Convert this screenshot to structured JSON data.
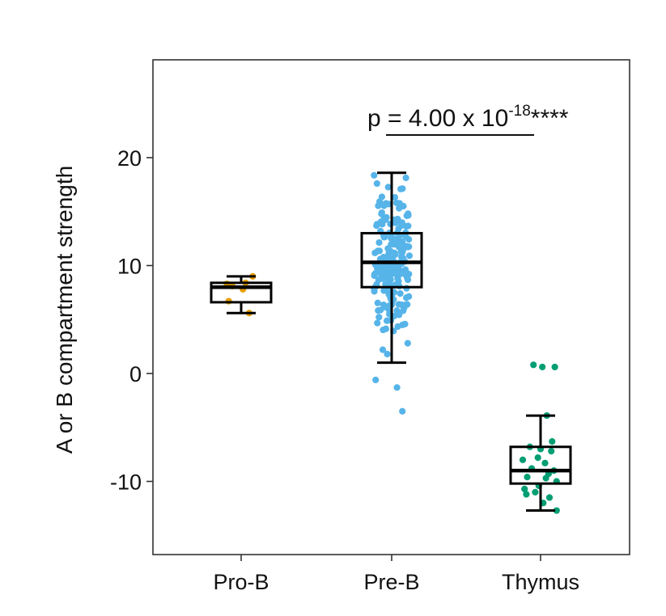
{
  "chart_data": {
    "type": "box-jitter",
    "title": "",
    "xlabel": "",
    "ylabel": "A or B compartment strength",
    "ylim": [
      -17,
      29
    ],
    "yticks": [
      -10,
      0,
      10,
      20
    ],
    "ytick_labels": [
      "-10",
      "0",
      "10",
      "20"
    ],
    "grid": false,
    "categories": [
      "Pro-B",
      "Pre-B",
      "Thymus"
    ],
    "colors": {
      "Pro-B": "#E69F00",
      "Pre-B": "#56B4E9",
      "Thymus": "#009E73"
    },
    "boxes": [
      {
        "name": "Pro-B",
        "whisker_low": 5.6,
        "q1": 6.6,
        "median": 8.0,
        "q3": 8.4,
        "whisker_high": 9.0
      },
      {
        "name": "Pre-B",
        "whisker_low": 1.0,
        "q1": 8.0,
        "median": 10.3,
        "q3": 13.0,
        "whisker_high": 18.6
      },
      {
        "name": "Thymus",
        "whisker_low": -12.7,
        "q1": -10.2,
        "median": -9.0,
        "q3": -6.8,
        "whisker_high": -3.9
      }
    ],
    "points": {
      "Pro-B": [
        [
          -0.16,
          8.3
        ],
        [
          -0.1,
          8.1
        ],
        [
          0.05,
          8.4
        ],
        [
          0.13,
          9.0
        ],
        [
          -0.14,
          6.7
        ],
        [
          0.09,
          5.6
        ],
        [
          0.02,
          7.8
        ]
      ],
      "Pre-B": [
        [
          -0.18,
          -0.6
        ],
        [
          -0.1,
          2.2
        ],
        [
          0.06,
          -1.3
        ],
        [
          0.18,
          2.8
        ],
        [
          0.12,
          -3.5
        ],
        [
          -0.05,
          1.8
        ]
      ],
      "Thymus": [
        [
          -0.08,
          0.8
        ],
        [
          0.02,
          0.6
        ],
        [
          0.16,
          0.6
        ],
        [
          0.07,
          -3.9
        ],
        [
          0.18,
          -12.7
        ],
        [
          -0.18,
          -10.7
        ],
        [
          0.1,
          -11.5
        ],
        [
          -0.12,
          -6.8
        ],
        [
          0.0,
          -7.0
        ],
        [
          0.12,
          -7.2
        ],
        [
          -0.15,
          -9.6
        ],
        [
          0.15,
          -9.0
        ],
        [
          -0.02,
          -10.4
        ],
        [
          0.05,
          -8.3
        ],
        [
          -0.1,
          -8.8
        ],
        [
          0.18,
          -10.0
        ],
        [
          -0.06,
          -11.0
        ],
        [
          0.09,
          -9.3
        ],
        [
          -0.2,
          -8.0
        ],
        [
          0.03,
          -12.0
        ],
        [
          -0.16,
          -11.2
        ],
        [
          0.13,
          -6.3
        ],
        [
          0.06,
          -9.7
        ],
        [
          -0.03,
          -7.8
        ]
      ]
    },
    "annotation": {
      "text": "p = 4.00 x 10",
      "superscript": "-18",
      "stars": "****",
      "from": "Pre-B",
      "to": "Thymus"
    }
  }
}
